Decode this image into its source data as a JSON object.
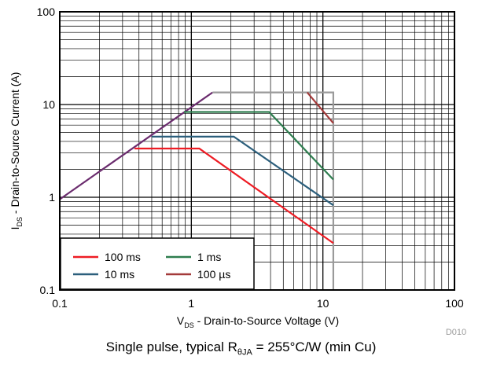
{
  "chart_data": {
    "type": "line",
    "title": "",
    "xlabel": "VDS - Drain-to-Source Voltage (V)",
    "ylabel": "IDS - Drain-to-Source Current (A)",
    "xlabel_parts": {
      "sym": "V",
      "sub": "DS",
      "rest": " - Drain-to-Source Voltage (V)"
    },
    "ylabel_parts": {
      "sym": "I",
      "sub": "DS",
      "rest": " - Drain-to-Source Current (A)"
    },
    "x_scale": "log",
    "y_scale": "log",
    "xlim": [
      0.1,
      100
    ],
    "ylim": [
      0.1,
      100
    ],
    "x_ticks": [
      0.1,
      1,
      10,
      100
    ],
    "x_tick_labels": [
      "0.1",
      "1",
      "10",
      "100"
    ],
    "y_ticks": [
      0.1,
      1,
      10,
      100
    ],
    "y_tick_labels": [
      "0.1",
      "1",
      "10",
      "100"
    ],
    "grid": true,
    "legend_position": "bottom-left",
    "series": [
      {
        "name": "100 ms",
        "color": "#ee1c24",
        "points": [
          [
            0.37,
            3.35
          ],
          [
            1.15,
            3.35
          ],
          [
            12,
            0.32
          ]
        ]
      },
      {
        "name": "1 ms",
        "color": "#2e7d4f",
        "points": [
          [
            0.88,
            8.3
          ],
          [
            3.9,
            8.3
          ],
          [
            12,
            1.55
          ]
        ]
      },
      {
        "name": "10 ms",
        "color": "#2c5f7c",
        "points": [
          [
            0.5,
            4.5
          ],
          [
            2.1,
            4.5
          ],
          [
            12,
            0.82
          ]
        ]
      },
      {
        "name": "100 µs",
        "color": "#a33a3a",
        "points": [
          [
            7.6,
            13.5
          ],
          [
            12,
            6.3
          ]
        ]
      }
    ],
    "limit_lines": [
      {
        "name": "rdson-limit",
        "color": "#6b2c6e",
        "points": [
          [
            0.1,
            0.95
          ],
          [
            1.45,
            13.5
          ]
        ]
      },
      {
        "name": "current-voltage-limit",
        "color": "#9a9a9a",
        "points": [
          [
            1.45,
            13.5
          ],
          [
            12,
            13.5
          ],
          [
            12,
            0.1
          ]
        ]
      }
    ],
    "watermark": "D010",
    "caption": {
      "prefix": "Single pulse, typical R",
      "sub": "θJA",
      "suffix": " = 255°C/W (min Cu)"
    }
  }
}
